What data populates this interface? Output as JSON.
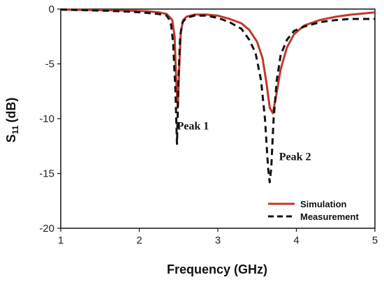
{
  "chart_data": {
    "type": "line",
    "xlabel": "Frequency (GHz)",
    "ylabel_main": "S",
    "ylabel_sub": "11",
    "ylabel_unit": "(dB)",
    "xlim": [
      1,
      5
    ],
    "ylim": [
      -20,
      0
    ],
    "xticks": [
      1,
      2,
      3,
      4,
      5
    ],
    "yticks": [
      0,
      -5,
      -10,
      -15,
      -20
    ],
    "grid": false,
    "legend_position": "bottom-right",
    "annotations": [
      {
        "text": "Peak 1",
        "x": 2.48,
        "y": -11.0
      },
      {
        "text": "Peak 2",
        "x": 3.78,
        "y": -13.8
      }
    ],
    "series": [
      {
        "name": "Simulation",
        "color": "#c0392b",
        "style": "solid",
        "x": [
          1.0,
          1.3,
          1.6,
          1.9,
          2.1,
          2.25,
          2.35,
          2.42,
          2.45,
          2.47,
          2.49,
          2.51,
          2.53,
          2.56,
          2.6,
          2.7,
          2.85,
          3.0,
          3.15,
          3.3,
          3.4,
          3.5,
          3.57,
          3.62,
          3.66,
          3.7,
          3.74,
          3.8,
          3.88,
          3.97,
          4.1,
          4.3,
          4.5,
          4.7,
          5.0
        ],
        "y": [
          -0.05,
          -0.08,
          -0.1,
          -0.15,
          -0.2,
          -0.3,
          -0.45,
          -1.0,
          -2.5,
          -6.5,
          -9.0,
          -5.0,
          -2.0,
          -1.0,
          -0.7,
          -0.5,
          -0.5,
          -0.6,
          -0.9,
          -1.3,
          -1.9,
          -3.0,
          -4.5,
          -6.8,
          -9.0,
          -9.5,
          -8.0,
          -5.5,
          -3.5,
          -2.3,
          -1.5,
          -1.0,
          -0.7,
          -0.5,
          -0.3
        ]
      },
      {
        "name": "Measurement",
        "color": "#111111",
        "style": "dashed",
        "x": [
          1.0,
          1.3,
          1.6,
          1.9,
          2.1,
          2.25,
          2.35,
          2.4,
          2.43,
          2.46,
          2.48,
          2.5,
          2.52,
          2.55,
          2.6,
          2.7,
          2.85,
          3.0,
          3.15,
          3.3,
          3.4,
          3.48,
          3.55,
          3.6,
          3.64,
          3.66,
          3.68,
          3.71,
          3.75,
          3.8,
          3.88,
          3.97,
          4.1,
          4.3,
          4.5,
          4.7,
          5.0
        ],
        "y": [
          -0.05,
          -0.1,
          -0.15,
          -0.25,
          -0.35,
          -0.45,
          -0.6,
          -1.2,
          -3.0,
          -7.5,
          -12.3,
          -6.0,
          -2.5,
          -1.2,
          -0.8,
          -0.6,
          -0.6,
          -0.8,
          -1.2,
          -1.8,
          -2.8,
          -4.0,
          -6.5,
          -10.0,
          -14.5,
          -15.8,
          -14.5,
          -10.0,
          -6.5,
          -4.2,
          -2.8,
          -2.0,
          -1.6,
          -1.2,
          -1.0,
          -0.9,
          -0.9
        ]
      }
    ]
  }
}
